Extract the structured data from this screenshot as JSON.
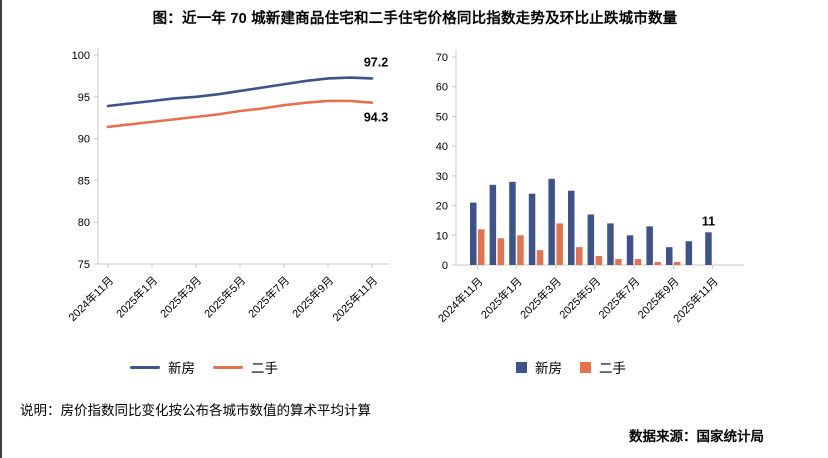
{
  "title": "图：近一年 70 城新建商品住宅和二手住宅价格同比指数走势及环比止跌城市数量",
  "note": "说明：房价指数同比变化按公布各城市数值的算术平均计算",
  "source": "数据来源：国家统计局",
  "colors": {
    "new_home": "#3E5389",
    "second_hand": "#E4724C",
    "axis": "#C8C8C8",
    "text": "#000000"
  },
  "chart_data": [
    {
      "type": "line",
      "n_points": 13,
      "tick_indices": [
        0,
        2,
        4,
        6,
        8,
        10,
        12
      ],
      "tick_labels": [
        "2024年11月",
        "2025年1月",
        "2025年3月",
        "2025年5月",
        "2025年7月",
        "2025年9月",
        "2025年11月"
      ],
      "ylim": [
        75,
        100
      ],
      "yticks": [
        75,
        80,
        85,
        90,
        95,
        100
      ],
      "legend_position": "bottom",
      "grid": false,
      "series": [
        {
          "name": "新房",
          "color_key": "new_home",
          "values": [
            93.9,
            94.2,
            94.5,
            94.8,
            95.0,
            95.3,
            95.7,
            96.1,
            96.5,
            96.9,
            97.2,
            97.3,
            97.2
          ],
          "end_label": "97.2",
          "end_label_side": "above"
        },
        {
          "name": "二手",
          "color_key": "second_hand",
          "values": [
            91.4,
            91.7,
            92.0,
            92.3,
            92.6,
            92.9,
            93.3,
            93.6,
            94.0,
            94.3,
            94.5,
            94.5,
            94.3
          ],
          "end_label": "94.3",
          "end_label_side": "below"
        }
      ]
    },
    {
      "type": "bar",
      "n_points": 13,
      "tick_indices": [
        0,
        2,
        4,
        6,
        8,
        10,
        12
      ],
      "tick_labels": [
        "2024年11月",
        "2025年1月",
        "2025年3月",
        "2025年5月",
        "2025年7月",
        "2025年9月",
        "2025年11月"
      ],
      "ylim": [
        0,
        70
      ],
      "yticks": [
        0,
        10,
        20,
        30,
        40,
        50,
        60,
        70
      ],
      "legend_position": "bottom",
      "grid": false,
      "series": [
        {
          "name": "新房",
          "color_key": "new_home",
          "values": [
            21,
            27,
            28,
            24,
            29,
            25,
            17,
            14,
            10,
            13,
            6,
            8,
            11
          ],
          "end_label": "11"
        },
        {
          "name": "二手",
          "color_key": "second_hand",
          "values": [
            12,
            9,
            10,
            5,
            14,
            6,
            3,
            2,
            2,
            1,
            1,
            0,
            0
          ]
        }
      ]
    }
  ]
}
